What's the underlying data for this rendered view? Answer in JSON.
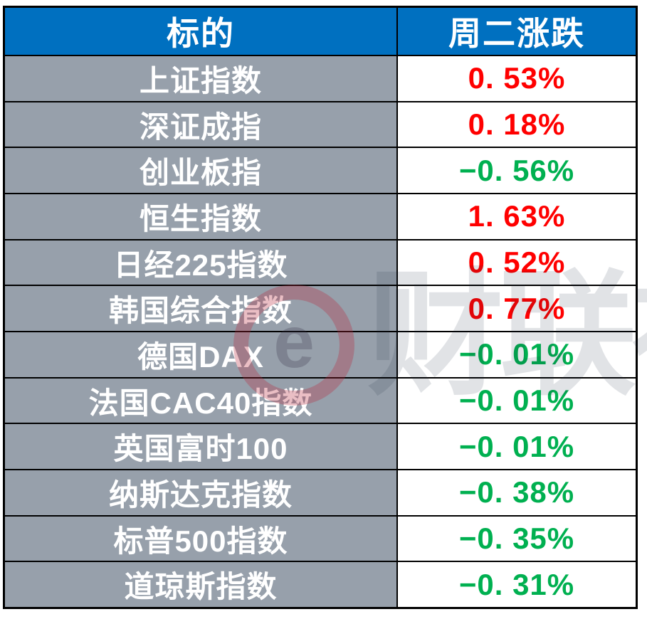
{
  "table": {
    "header": {
      "target": "标的",
      "change": "周二涨跌"
    },
    "rows": [
      {
        "name": "上证指数",
        "value": "0. 53%",
        "direction": "up"
      },
      {
        "name": "深证成指",
        "value": "0. 18%",
        "direction": "up"
      },
      {
        "name": "创业板指",
        "value": "−0. 56%",
        "direction": "down"
      },
      {
        "name": "恒生指数",
        "value": "1. 63%",
        "direction": "up"
      },
      {
        "name": "日经225指数",
        "value": "0. 52%",
        "direction": "up"
      },
      {
        "name": "韩国综合指数",
        "value": "0. 77%",
        "direction": "up"
      },
      {
        "name": "德国DAX",
        "value": "−0. 01%",
        "direction": "down"
      },
      {
        "name": "法国CAC40指数",
        "value": "−0. 01%",
        "direction": "down"
      },
      {
        "name": "英国富时100",
        "value": "−0. 01%",
        "direction": "down"
      },
      {
        "name": "纳斯达克指数",
        "value": "−0. 38%",
        "direction": "down"
      },
      {
        "name": "标普500指数",
        "value": "−0. 35%",
        "direction": "down"
      },
      {
        "name": "道琼斯指数",
        "value": "−0. 31%",
        "direction": "down"
      }
    ]
  },
  "colors": {
    "up": "#ff0000",
    "down": "#00b050",
    "header_bg": "#0070c0",
    "header_text": "#ffffff",
    "label_bg": "#97a0ab",
    "grid_line": "#000000"
  },
  "watermark": {
    "logo_glyph": "e",
    "text": "财联社"
  },
  "chart_data": {
    "type": "table",
    "columns": [
      "标的",
      "周二涨跌"
    ],
    "rows": [
      [
        "上证指数",
        "0.53%"
      ],
      [
        "深证成指",
        "0.18%"
      ],
      [
        "创业板指",
        "-0.56%"
      ],
      [
        "恒生指数",
        "1.63%"
      ],
      [
        "日经225指数",
        "0.52%"
      ],
      [
        "韩国综合指数",
        "0.77%"
      ],
      [
        "德国DAX",
        "-0.01%"
      ],
      [
        "法国CAC40指数",
        "-0.01%"
      ],
      [
        "英国富时100",
        "-0.01%"
      ],
      [
        "纳斯达克指数",
        "-0.38%"
      ],
      [
        "标普500指数",
        "-0.35%"
      ],
      [
        "道琼斯指数",
        "-0.31%"
      ]
    ],
    "values_numeric_pct": [
      0.53,
      0.18,
      -0.56,
      1.63,
      0.52,
      0.77,
      -0.01,
      -0.01,
      -0.01,
      -0.38,
      -0.35,
      -0.31
    ],
    "legend_position": "none",
    "grid": true,
    "note_color_convention": "positive values red, negative values green"
  }
}
